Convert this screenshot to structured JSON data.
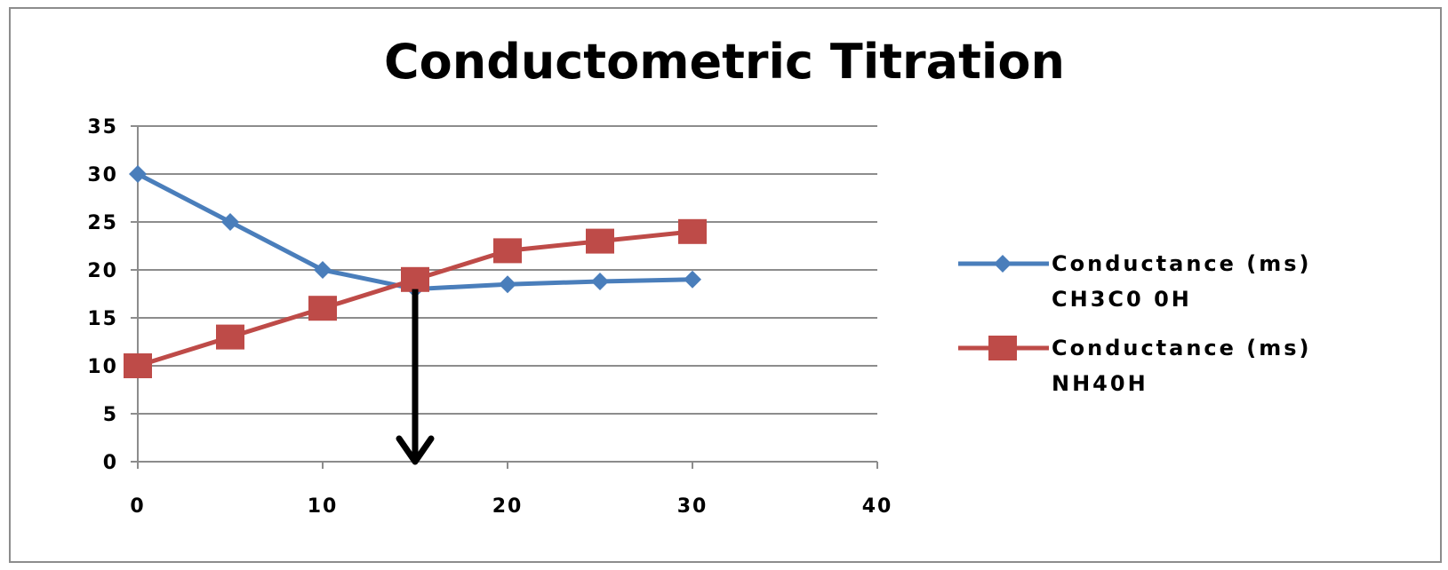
{
  "chart_data": {
    "type": "line",
    "title": "Conductometric Titration",
    "xlabel": "",
    "ylabel": "",
    "xlim": [
      0,
      40
    ],
    "ylim": [
      0,
      35
    ],
    "x_ticks": [
      0,
      10,
      20,
      30,
      40
    ],
    "y_ticks": [
      0,
      5,
      10,
      15,
      20,
      25,
      30,
      35
    ],
    "grid": true,
    "legend_position": "right",
    "annotation": {
      "type": "arrow-down",
      "x": 15,
      "from_y": 18,
      "to_y": 0
    },
    "series": [
      {
        "name_lines": [
          "Conductance (ms)",
          "CH3C0 0H"
        ],
        "color": "#4a7ebb",
        "marker": "diamond",
        "x": [
          0,
          5,
          10,
          15,
          20,
          25,
          30
        ],
        "values": [
          30,
          25,
          20,
          18,
          18.5,
          18.8,
          19
        ]
      },
      {
        "name_lines": [
          "Conductance (ms)",
          "NH40H"
        ],
        "color": "#be4b48",
        "marker": "square",
        "x": [
          0,
          5,
          10,
          15,
          20,
          25,
          30
        ],
        "values": [
          10,
          13,
          16,
          19,
          22,
          23,
          24
        ]
      }
    ]
  }
}
